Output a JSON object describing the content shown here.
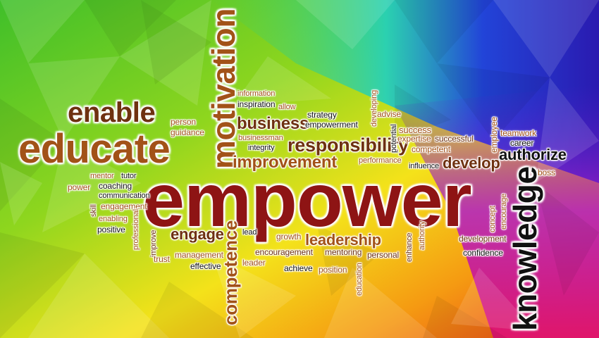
{
  "image": {
    "subject": "empowerment word cloud",
    "palette": {
      "red": "#8e1414",
      "brown": "#a25218",
      "dark_brown": "#6e3110",
      "orange": "#b5651d",
      "black": "#111111"
    },
    "words": [
      {
        "text": "empower",
        "color": "#8e1414"
      },
      {
        "text": "educate",
        "color": "#a25218"
      },
      {
        "text": "enable",
        "color": "#6e3110"
      },
      {
        "text": "motivation",
        "color": "#a25218"
      },
      {
        "text": "knowledge",
        "color": "#111111"
      },
      {
        "text": "competence",
        "color": "#a25218"
      },
      {
        "text": "responsibility",
        "color": "#6e3110"
      },
      {
        "text": "improvement",
        "color": "#a25218"
      },
      {
        "text": "business",
        "color": "#6e3110"
      },
      {
        "text": "leadership",
        "color": "#a25218"
      },
      {
        "text": "engage",
        "color": "#6e3110"
      },
      {
        "text": "authorize",
        "color": "#111111"
      },
      {
        "text": "develop",
        "color": "#6e3110"
      },
      {
        "text": "information",
        "color": "#a25218"
      },
      {
        "text": "inspiration",
        "color": "#111111"
      },
      {
        "text": "allow",
        "color": "#a25218"
      },
      {
        "text": "strategy",
        "color": "#111111"
      },
      {
        "text": "empowerment",
        "color": "#111111"
      },
      {
        "text": "businessman",
        "color": "#a25218"
      },
      {
        "text": "integrity",
        "color": "#111111"
      },
      {
        "text": "developing",
        "color": "#a25218"
      },
      {
        "text": "advise",
        "color": "#a25218"
      },
      {
        "text": "potential",
        "color": "#111111"
      },
      {
        "text": "success",
        "color": "#a25218"
      },
      {
        "text": "expertise",
        "color": "#a25218"
      },
      {
        "text": "successful",
        "color": "#6e3110"
      },
      {
        "text": "competent",
        "color": "#a25218"
      },
      {
        "text": "employee",
        "color": "#a25218"
      },
      {
        "text": "teamwork",
        "color": "#a25218"
      },
      {
        "text": "career",
        "color": "#111111"
      },
      {
        "text": "boss",
        "color": "#a25218"
      },
      {
        "text": "performance",
        "color": "#a25218"
      },
      {
        "text": "influence",
        "color": "#111111"
      },
      {
        "text": "person",
        "color": "#a25218"
      },
      {
        "text": "guidance",
        "color": "#a25218"
      },
      {
        "text": "mentor",
        "color": "#a25218"
      },
      {
        "text": "tutor",
        "color": "#111111"
      },
      {
        "text": "power",
        "color": "#a25218"
      },
      {
        "text": "coaching",
        "color": "#111111"
      },
      {
        "text": "communication",
        "color": "#111111"
      },
      {
        "text": "skill",
        "color": "#6e3110"
      },
      {
        "text": "engagement",
        "color": "#a25218"
      },
      {
        "text": "enabling",
        "color": "#a25218"
      },
      {
        "text": "positive",
        "color": "#111111"
      },
      {
        "text": "professional",
        "color": "#a25218"
      },
      {
        "text": "improve",
        "color": "#6e3110"
      },
      {
        "text": "trust",
        "color": "#a25218"
      },
      {
        "text": "management",
        "color": "#a25218"
      },
      {
        "text": "effective",
        "color": "#111111"
      },
      {
        "text": "lead",
        "color": "#111111"
      },
      {
        "text": "leader",
        "color": "#a25218"
      },
      {
        "text": "growth",
        "color": "#a25218"
      },
      {
        "text": "encouragement",
        "color": "#6e3110"
      },
      {
        "text": "mentoring",
        "color": "#6e3110"
      },
      {
        "text": "personal",
        "color": "#6e3110"
      },
      {
        "text": "achieve",
        "color": "#111111"
      },
      {
        "text": "position",
        "color": "#a25218"
      },
      {
        "text": "education",
        "color": "#a25218"
      },
      {
        "text": "enhance",
        "color": "#6e3110"
      },
      {
        "text": "authority",
        "color": "#a25218"
      },
      {
        "text": "concept",
        "color": "#a25218"
      },
      {
        "text": "encourage",
        "color": "#a25218"
      },
      {
        "text": "development",
        "color": "#6e3110"
      },
      {
        "text": "confidence",
        "color": "#111111"
      }
    ]
  }
}
